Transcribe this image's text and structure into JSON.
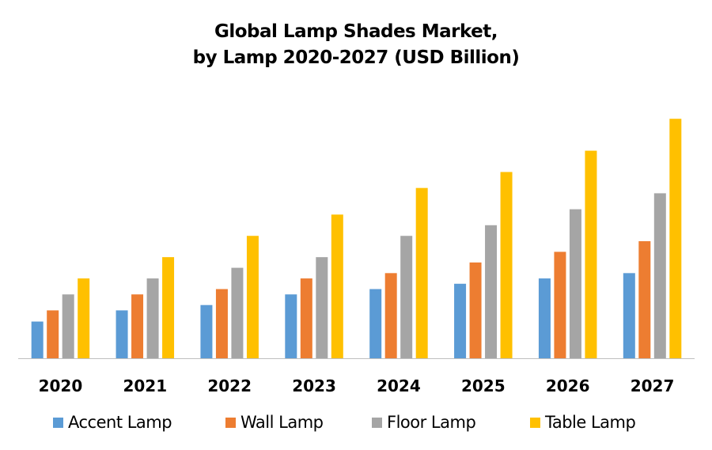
{
  "chart_data": {
    "type": "bar",
    "title": "Global Lamp Shades Market,\nby Lamp 2020-2027 (USD Billion)",
    "title_lines": [
      "Global Lamp Shades Market,",
      "by Lamp 2020-2027 (USD Billion)"
    ],
    "xlabel": "",
    "ylabel": "",
    "categories": [
      "2020",
      "2021",
      "2022",
      "2023",
      "2024",
      "2025",
      "2026",
      "2027"
    ],
    "series": [
      {
        "name": "Accent Lamp",
        "color": "#5B9BD5",
        "values": [
          6.9,
          9.0,
          10.0,
          12.0,
          13.0,
          14.0,
          15.0,
          16.0
        ]
      },
      {
        "name": "Wall Lamp",
        "color": "#ED7D31",
        "values": [
          9.0,
          12.0,
          13.0,
          15.0,
          16.0,
          18.0,
          20.0,
          22.0
        ]
      },
      {
        "name": "Floor Lamp",
        "color": "#A5A5A5",
        "values": [
          12.0,
          15.0,
          17.0,
          19.0,
          23.0,
          25.0,
          28.0,
          31.0
        ]
      },
      {
        "name": "Table Lamp",
        "color": "#FFC000",
        "values": [
          15.0,
          19.0,
          23.0,
          27.0,
          32.0,
          35.0,
          39.0,
          45.0
        ]
      }
    ],
    "ylim": [
      0,
      48
    ],
    "grid": false,
    "y_axis_visible": false,
    "legend_position": "bottom"
  }
}
